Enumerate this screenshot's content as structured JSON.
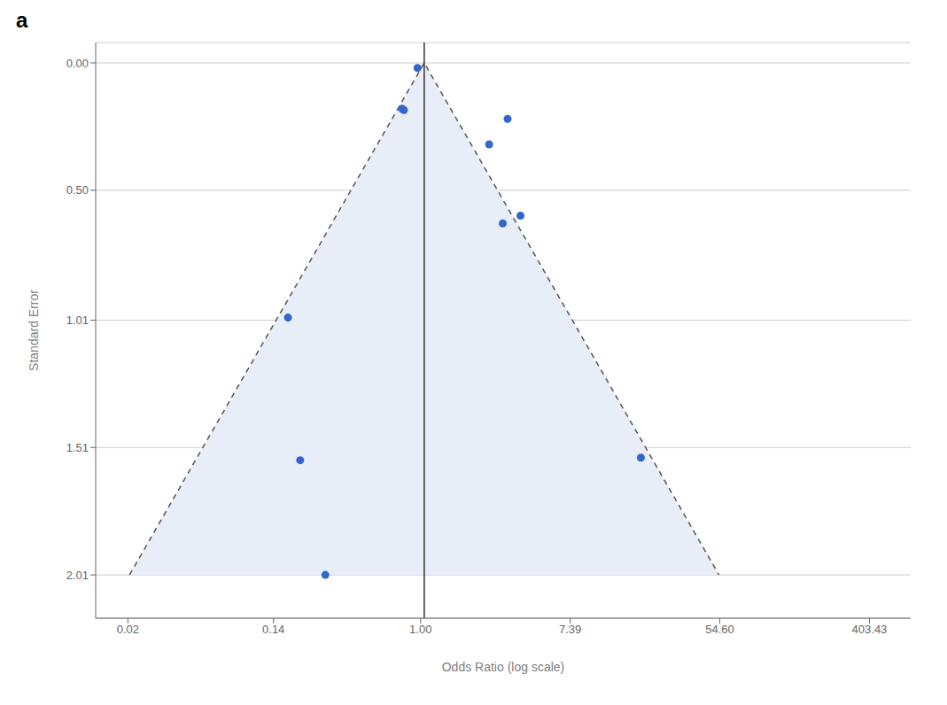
{
  "chart_data": {
    "type": "scatter",
    "title": "a",
    "x_label": "Odds Ratio (log scale)",
    "y_label": "Standard Error",
    "x": [
      0.96,
      0.78,
      0.8,
      3.2,
      2.5,
      3.8,
      3.0,
      0.17,
      0.2,
      19.0,
      0.28
    ],
    "values": [
      0.02,
      0.18,
      0.185,
      0.22,
      0.32,
      0.6,
      0.63,
      1.0,
      1.56,
      1.55,
      2.01
    ],
    "funnel": {
      "x": [
        0.0204288,
        1.05,
        53.9679
      ],
      "values": [
        2.01,
        0,
        2.01
      ],
      "line_style": "dashed"
    },
    "center_line": {
      "x": 1.05
    },
    "log": "x",
    "xlim": [
      0.013,
      700.0
    ],
    "xticks": [
      0.02,
      0.14,
      {
        "value": 1.0,
        "label": "1.00"
      },
      7.39,
      {
        "value": 54.6,
        "label": "54.60"
      },
      403.43
    ],
    "ylim": [
      2.18,
      -0.08
    ],
    "yticks": [
      {
        "value": 0.0,
        "label": "0.00"
      },
      {
        "value": 0.5,
        "label": "0.50"
      },
      1.01,
      1.51,
      2.01
    ],
    "grid": "y"
  }
}
